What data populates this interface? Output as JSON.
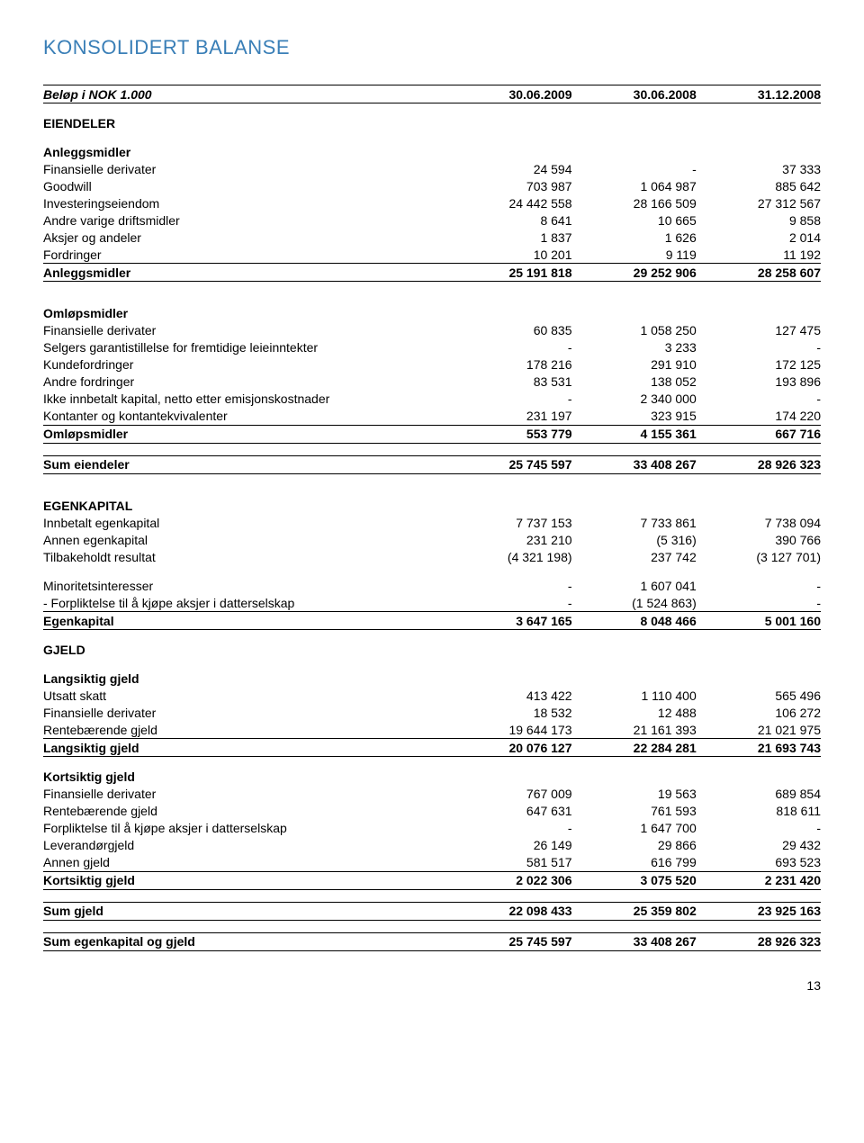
{
  "title": "KONSOLIDERT BALANSE",
  "header": {
    "label": "Beløp i NOK 1.000",
    "c1": "30.06.2009",
    "c2": "30.06.2008",
    "c3": "31.12.2008"
  },
  "rows": [
    {
      "type": "section",
      "label": "EIENDELER",
      "after_rule": false
    },
    {
      "type": "section",
      "label": "Anleggsmidler"
    },
    {
      "type": "row",
      "label": "Finansielle derivater",
      "c1": "24 594",
      "c2": "-",
      "c3": "37 333"
    },
    {
      "type": "row",
      "label": "Goodwill",
      "c1": "703 987",
      "c2": "1 064 987",
      "c3": "885 642"
    },
    {
      "type": "row",
      "label": "Investeringseiendom",
      "c1": "24 442 558",
      "c2": "28 166 509",
      "c3": "27 312 567"
    },
    {
      "type": "row",
      "label": "Andre varige driftsmidler",
      "c1": "8 641",
      "c2": "10 665",
      "c3": "9 858"
    },
    {
      "type": "row",
      "label": "Aksjer og andeler",
      "c1": "1 837",
      "c2": "1 626",
      "c3": "2 014"
    },
    {
      "type": "row",
      "label": "Fordringer",
      "c1": "10 201",
      "c2": "9 119",
      "c3": "11 192"
    },
    {
      "type": "subtotal",
      "label": "Anleggsmidler",
      "c1": "25 191 818",
      "c2": "29 252 906",
      "c3": "28 258 607",
      "rule": "both"
    },
    {
      "type": "spacer"
    },
    {
      "type": "section",
      "label": "Omløpsmidler"
    },
    {
      "type": "row",
      "label": "Finansielle derivater",
      "c1": "60 835",
      "c2": "1 058 250",
      "c3": "127 475"
    },
    {
      "type": "row",
      "label": "Selgers garantistillelse for fremtidige leieinntekter",
      "c1": "-",
      "c2": "3 233",
      "c3": "-"
    },
    {
      "type": "row",
      "label": "Kundefordringer",
      "c1": "178 216",
      "c2": "291 910",
      "c3": "172 125"
    },
    {
      "type": "row",
      "label": "Andre fordringer",
      "c1": "83 531",
      "c2": "138 052",
      "c3": "193 896"
    },
    {
      "type": "row",
      "label": "Ikke innbetalt kapital, netto etter emisjonskostnader",
      "c1": "-",
      "c2": "2 340 000",
      "c3": "-"
    },
    {
      "type": "row",
      "label": "Kontanter og kontantekvivalenter",
      "c1": "231 197",
      "c2": "323 915",
      "c3": "174 220"
    },
    {
      "type": "subtotal",
      "label": "Omløpsmidler",
      "c1": "553 779",
      "c2": "4 155 361",
      "c3": "667 716",
      "rule": "both"
    },
    {
      "type": "spacer"
    },
    {
      "type": "subtotal",
      "label": "Sum eiendeler",
      "c1": "25 745 597",
      "c2": "33 408 267",
      "c3": "28 926 323",
      "rule": "both"
    },
    {
      "type": "spacer"
    },
    {
      "type": "section",
      "label": "EGENKAPITAL"
    },
    {
      "type": "row",
      "label": "Innbetalt egenkapital",
      "c1": "7 737 153",
      "c2": "7 733 861",
      "c3": "7 738 094"
    },
    {
      "type": "row",
      "label": "Annen egenkapital",
      "c1": "231 210",
      "c2": "(5 316)",
      "c3": "390 766"
    },
    {
      "type": "row",
      "label": "Tilbakeholdt resultat",
      "c1": "(4 321 198)",
      "c2": "237 742",
      "c3": "(3 127 701)"
    },
    {
      "type": "spacer"
    },
    {
      "type": "row",
      "label": "Minoritetsinteresser",
      "c1": "-",
      "c2": "1 607 041",
      "c3": "-"
    },
    {
      "type": "row",
      "label": " - Forpliktelse til å kjøpe aksjer i datterselskap",
      "c1": "-",
      "c2": "(1 524 863)",
      "c3": "-"
    },
    {
      "type": "subtotal",
      "label": "Egenkapital",
      "c1": "3 647 165",
      "c2": "8 048 466",
      "c3": "5 001 160",
      "rule": "both"
    },
    {
      "type": "section",
      "label": "GJELD"
    },
    {
      "type": "section",
      "label": "Langsiktig gjeld"
    },
    {
      "type": "row",
      "label": "Utsatt skatt",
      "c1": "413 422",
      "c2": "1 110 400",
      "c3": "565 496"
    },
    {
      "type": "row",
      "label": "Finansielle derivater",
      "c1": "18 532",
      "c2": "12 488",
      "c3": "106 272"
    },
    {
      "type": "row",
      "label": "Rentebærende gjeld",
      "c1": "19 644 173",
      "c2": "21 161 393",
      "c3": "21 021 975"
    },
    {
      "type": "subtotal",
      "label": "Langsiktig gjeld",
      "c1": "20 076 127",
      "c2": "22 284 281",
      "c3": "21 693 743",
      "rule": "both"
    },
    {
      "type": "section",
      "label": "Kortsiktig gjeld"
    },
    {
      "type": "row",
      "label": "Finansielle derivater",
      "c1": "767 009",
      "c2": "19 563",
      "c3": "689 854"
    },
    {
      "type": "row",
      "label": "Rentebærende gjeld",
      "c1": "647 631",
      "c2": "761 593",
      "c3": "818 611"
    },
    {
      "type": "row",
      "label": "Forpliktelse til å kjøpe aksjer i datterselskap",
      "c1": "-",
      "c2": "1 647 700",
      "c3": "-"
    },
    {
      "type": "row",
      "label": "Leverandørgjeld",
      "c1": "26 149",
      "c2": "29 866",
      "c3": "29 432"
    },
    {
      "type": "row",
      "label": "Annen gjeld",
      "c1": "581 517",
      "c2": "616 799",
      "c3": "693 523"
    },
    {
      "type": "subtotal",
      "label": "Kortsiktig gjeld",
      "c1": "2 022 306",
      "c2": "3 075 520",
      "c3": "2 231 420",
      "rule": "both"
    },
    {
      "type": "spacer"
    },
    {
      "type": "subtotal",
      "label": "Sum gjeld",
      "c1": "22 098 433",
      "c2": "25 359 802",
      "c3": "23 925 163",
      "rule": "both"
    },
    {
      "type": "spacer"
    },
    {
      "type": "subtotal",
      "label": "Sum egenkapital og gjeld",
      "c1": "25 745 597",
      "c2": "33 408 267",
      "c3": "28 926 323",
      "rule": "both"
    }
  ],
  "page_number": "13"
}
